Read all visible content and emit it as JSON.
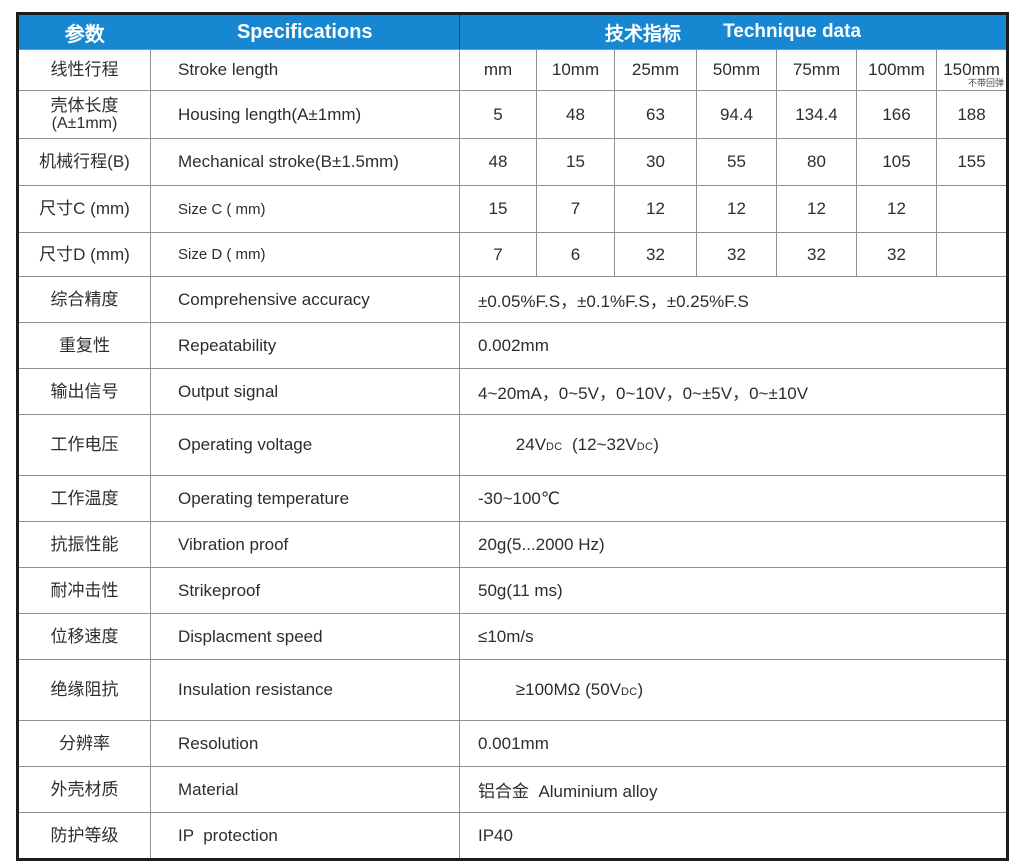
{
  "table": {
    "header": {
      "col_param": "参数",
      "col_spec": "Specifications",
      "col_tech_zh": "技术指标",
      "col_tech_en": "Technique data"
    },
    "unit_note": "不带回弹",
    "dim_rows": [
      {
        "zh": "线性行程",
        "en": "Stroke length",
        "values": [
          "mm",
          "10mm",
          "25mm",
          "50mm",
          "75mm",
          "100mm",
          "150mm"
        ]
      },
      {
        "zh": "壳体长度",
        "zh2": "(A±1mm)",
        "en": "Housing length(A±1mm)",
        "values": [
          "5",
          "48",
          "63",
          "94.4",
          "134.4",
          "166",
          "188"
        ]
      },
      {
        "zh": "机械行程(B)",
        "en": "Mechanical stroke(B±1.5mm)",
        "values": [
          "48",
          "15",
          "30",
          "55",
          "80",
          "105",
          "155"
        ]
      },
      {
        "zh": "尺寸C (mm)",
        "en": "Size C ( mm)",
        "values": [
          "15",
          "7",
          "12",
          "12",
          "12",
          "12",
          ""
        ]
      },
      {
        "zh": "尺寸D (mm)",
        "en": "Size D ( mm)",
        "values": [
          "7",
          "6",
          "32",
          "32",
          "32",
          "32",
          ""
        ]
      }
    ],
    "spec_rows": [
      {
        "zh": "综合精度",
        "en": "Comprehensive accuracy",
        "value": "±0.05%F.S，±0.1%F.S，±0.25%F.S"
      },
      {
        "zh": "重复性",
        "en": "Repeatability",
        "value": "0.002mm"
      },
      {
        "zh": "输出信号",
        "en": "Output signal",
        "value": "4~20mA，0~5V，0~10V，0~±5V，0~±10V"
      },
      {
        "zh": "工作电压",
        "en": "Operating voltage",
        "parts": {
          "a": "24V",
          "b": "DC",
          "c": "  (12~32V",
          "d": "DC",
          "e": ")"
        }
      },
      {
        "zh": "工作温度",
        "en": "Operating temperature",
        "value": "-30~100℃"
      },
      {
        "zh": "抗振性能",
        "en": "Vibration proof",
        "value": "20g(5...2000 Hz)"
      },
      {
        "zh": "耐冲击性",
        "en": "Strikeproof",
        "value": "50g(11 ms)"
      },
      {
        "zh": "位移速度",
        "en": "Displacment speed",
        "value": "≤10m/s"
      },
      {
        "zh": "绝缘阻抗",
        "en": "Insulation resistance",
        "parts": {
          "a": "≥100MΩ (50V",
          "b": "DC",
          "c": ")"
        }
      },
      {
        "zh": "分辨率",
        "en": "Resolution",
        "value": "0.001mm"
      },
      {
        "zh": "外壳材质",
        "en": "Material",
        "value": "铝合金  Aluminium alloy"
      },
      {
        "zh": "防护等级",
        "en": "IP  protection",
        "value": "IP40"
      }
    ],
    "colors": {
      "header_bg": "#1787d2",
      "header_text": "#ffffff",
      "outer_border": "#1c1c1c",
      "grid_line": "#8f8f8f",
      "body_text": "#2d2d2d"
    }
  }
}
